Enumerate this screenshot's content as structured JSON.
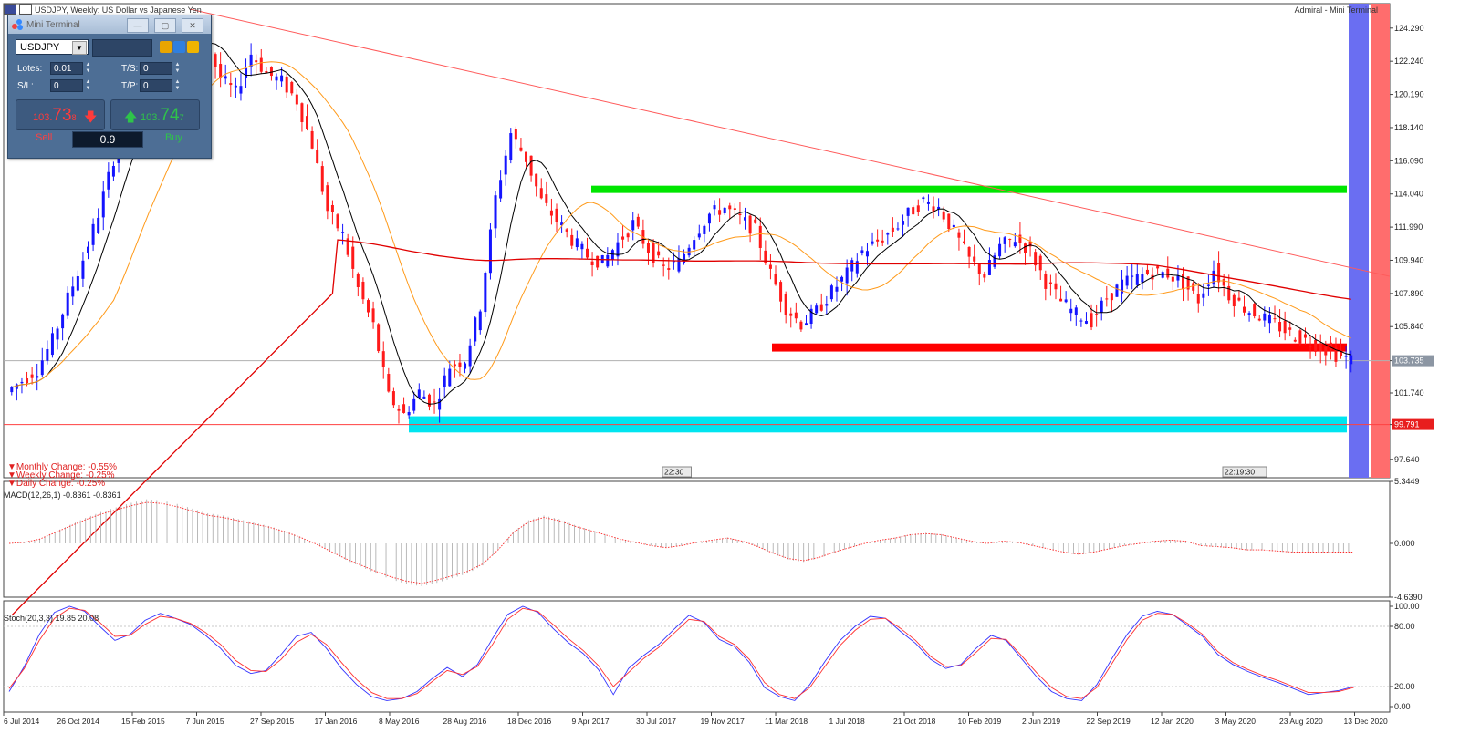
{
  "window": {
    "title": "USDJPY, Weekly:  US Dollar vs Japanese Yen",
    "broker_label": "Admiral - Mini Terminal"
  },
  "mini_terminal": {
    "title": "Mini Terminal",
    "symbol": "USDJPY",
    "lots_label": "Lotes:",
    "lots_value": "0.01",
    "ts_label": "T/S:",
    "ts_value": "0",
    "sl_label": "S/L:",
    "sl_value": "0",
    "tp_label": "T/P:",
    "tp_value": "0",
    "sell_price_prefix": "103.",
    "sell_price_big": "73",
    "sell_price_sup": "8",
    "buy_price_prefix": "103.",
    "buy_price_big": "74",
    "buy_price_sup": "7",
    "sell_label": "Sell",
    "buy_label": "Buy",
    "lot_size": "0.9",
    "sell_color": "#ff3333",
    "buy_color": "#2ec44a"
  },
  "changes": {
    "monthly": "▼Monthly Change: -0.55%",
    "weekly": "▼Weekly Change: -0.25%",
    "daily": "▼Daily Change: -0.25%"
  },
  "time_markers": [
    "22:30",
    "22:19:30"
  ],
  "indicators": {
    "macd_label": "MACD(12,26,1) -0.8361 -0.8361",
    "stoch_label": "Stoch(20,3,3) 19.85 20.08"
  },
  "chart_data": [
    {
      "type": "candlestick",
      "title": "USDJPY, Weekly:  US Dollar vs Japanese Yen",
      "ylim": [
        96.5,
        125.8
      ],
      "y_ticks": [
        "124.290",
        "122.240",
        "120.190",
        "118.140",
        "116.090",
        "114.040",
        "111.990",
        "109.940",
        "107.890",
        "105.840",
        "103.735",
        "101.740",
        "99.791",
        "97.640"
      ],
      "current_price": 103.735,
      "marked_level": 99.791,
      "x_tick_labels": [
        "6 Jul 2014",
        "26 Oct 2014",
        "15 Feb 2015",
        "7 Jun 2015",
        "27 Sep 2015",
        "17 Jan 2016",
        "8 May 2016",
        "28 Aug 2016",
        "18 Dec 2016",
        "9 Apr 2017",
        "30 Jul 2017",
        "19 Nov 2017",
        "11 Mar 2018",
        "1 Jul 2018",
        "21 Oct 2018",
        "10 Feb 2019",
        "2 Jun 2019",
        "22 Sep 2019",
        "12 Jan 2020",
        "3 May 2020",
        "23 Aug 2020",
        "13 Dec 2020"
      ],
      "close_path": [
        101.8,
        102.5,
        103.2,
        105.0,
        107.6,
        110.0,
        112.8,
        116.2,
        118.8,
        119.8,
        120.5,
        122.6,
        124.2,
        123.4,
        121.2,
        120.3,
        122.7,
        121.5,
        121.0,
        119.8,
        117.1,
        113.0,
        111.5,
        108.2,
        105.9,
        101.5,
        100.4,
        101.8,
        101.0,
        103.4,
        103.8,
        107.1,
        113.8,
        117.8,
        116.2,
        113.6,
        112.4,
        111.2,
        110.2,
        109.8,
        111.0,
        112.2,
        110.6,
        109.4,
        109.8,
        111.5,
        112.8,
        113.2,
        112.5,
        111.8,
        109.1,
        107.0,
        106.0,
        106.8,
        108.0,
        109.1,
        110.5,
        111.1,
        111.8,
        112.8,
        113.6,
        113.2,
        111.7,
        110.0,
        109.0,
        110.8,
        111.3,
        110.5,
        108.6,
        107.4,
        106.6,
        106.2,
        107.6,
        108.5,
        108.9,
        109.2,
        109.1,
        108.5,
        107.5,
        109.4,
        107.8,
        107.0,
        106.5,
        106.0,
        105.4,
        105.0,
        104.6,
        104.1,
        103.8
      ],
      "zones": [
        {
          "name": "resistance",
          "from": 114.1,
          "to": 114.55,
          "color": "#00e600"
        },
        {
          "name": "support",
          "from": 104.3,
          "to": 104.8,
          "color": "#ff0000"
        },
        {
          "name": "demand",
          "from": 99.3,
          "to": 100.3,
          "color": "#00e5f0"
        }
      ],
      "trendlines": [
        {
          "color": "#ff5a5a",
          "from": {
            "x": "7 Jun 2015",
            "y": 125.8
          },
          "to": {
            "x": "13 Dec 2020",
            "y": 109.4
          }
        }
      ],
      "moving_averages": [
        {
          "color": "#000000"
        },
        {
          "color": "#ff9a1a"
        },
        {
          "color": "#e00000"
        }
      ]
    },
    {
      "type": "bar",
      "ylim": [
        -4.639,
        5.3449
      ],
      "y_ticks": [
        "5.3449",
        "0.000",
        "-4.6390"
      ],
      "values": [
        0.0,
        0.1,
        0.4,
        1.0,
        1.6,
        2.2,
        2.7,
        3.1,
        3.5,
        3.8,
        3.7,
        3.4,
        3.0,
        2.6,
        2.4,
        2.1,
        1.8,
        1.5,
        1.1,
        0.6,
        0.0,
        -0.7,
        -1.4,
        -2.0,
        -2.6,
        -3.1,
        -3.5,
        -3.7,
        -3.4,
        -3.0,
        -2.6,
        -1.9,
        -0.6,
        1.0,
        2.0,
        2.4,
        2.1,
        1.6,
        1.2,
        0.8,
        0.4,
        0.1,
        -0.2,
        -0.4,
        -0.2,
        0.1,
        0.3,
        0.5,
        0.2,
        -0.3,
        -0.9,
        -1.4,
        -1.6,
        -1.3,
        -0.8,
        -0.4,
        0.0,
        0.3,
        0.5,
        0.8,
        0.9,
        0.8,
        0.5,
        0.2,
        0.0,
        0.2,
        0.1,
        -0.2,
        -0.5,
        -0.8,
        -1.0,
        -0.8,
        -0.5,
        -0.2,
        0.0,
        0.2,
        0.3,
        0.2,
        -0.2,
        -0.3,
        -0.4,
        -0.6,
        -0.6,
        -0.7,
        -0.8,
        -0.8,
        -0.8,
        -0.8,
        -0.8
      ]
    },
    {
      "type": "line",
      "ylim": [
        0,
        100
      ],
      "y_ticks": [
        "100.00",
        "80.00",
        "20.00",
        "0.00"
      ],
      "series": [
        {
          "color": "#3030ff",
          "values": [
            15,
            40,
            72,
            94,
            100,
            95,
            80,
            66,
            72,
            86,
            93,
            88,
            82,
            71,
            58,
            41,
            33,
            36,
            52,
            70,
            74,
            58,
            38,
            22,
            10,
            6,
            8,
            15,
            28,
            39,
            30,
            42,
            68,
            92,
            100,
            94,
            78,
            64,
            53,
            37,
            12,
            38,
            51,
            62,
            77,
            91,
            84,
            67,
            60,
            44,
            19,
            10,
            6,
            22,
            45,
            66,
            80,
            90,
            88,
            75,
            63,
            47,
            38,
            42,
            58,
            71,
            66,
            48,
            30,
            15,
            8,
            6,
            22,
            48,
            72,
            90,
            95,
            92,
            81,
            70,
            52,
            42,
            35,
            29,
            24,
            18,
            12,
            14,
            16,
            20
          ]
        },
        {
          "color": "#ff3030",
          "values": [
            18,
            38,
            66,
            88,
            98,
            96,
            84,
            70,
            71,
            82,
            90,
            88,
            83,
            74,
            62,
            46,
            36,
            35,
            47,
            64,
            72,
            62,
            44,
            27,
            14,
            8,
            8,
            13,
            25,
            36,
            32,
            40,
            62,
            87,
            98,
            95,
            82,
            68,
            56,
            41,
            20,
            34,
            48,
            59,
            73,
            87,
            85,
            70,
            62,
            47,
            24,
            12,
            8,
            19,
            40,
            61,
            76,
            87,
            88,
            78,
            66,
            50,
            40,
            41,
            54,
            68,
            67,
            51,
            34,
            19,
            10,
            8,
            19,
            43,
            67,
            86,
            93,
            92,
            83,
            72,
            55,
            44,
            37,
            31,
            26,
            20,
            14,
            14,
            15,
            19
          ]
        }
      ]
    }
  ]
}
